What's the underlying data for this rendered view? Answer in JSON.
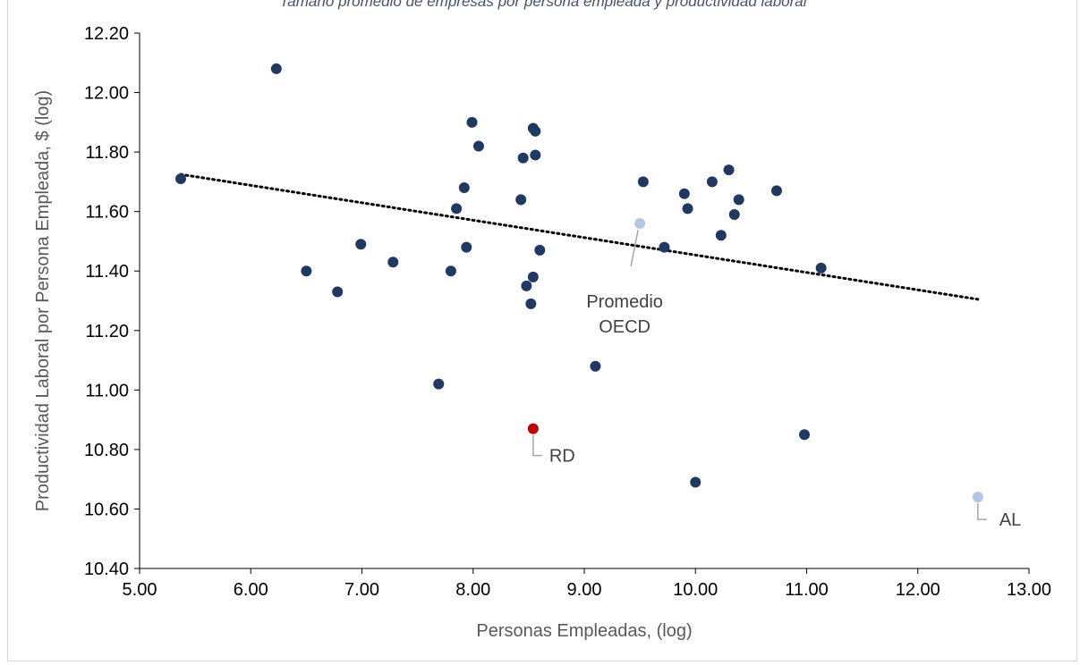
{
  "chart_data": {
    "type": "scatter",
    "title": "",
    "caption_fragment": "Tamaño promedio de empresas por persona empleada y productividad laboral",
    "xlabel": "Personas Empleadas, (log)",
    "ylabel": "Productividad Laboral por Persona Empleada, $ (log)",
    "xlim": [
      5.0,
      13.0
    ],
    "ylim": [
      10.4,
      12.2
    ],
    "x_ticks": [
      "5.00",
      "6.00",
      "7.00",
      "8.00",
      "9.00",
      "10.00",
      "11.00",
      "12.00",
      "13.00"
    ],
    "y_ticks": [
      "10.40",
      "10.60",
      "10.80",
      "11.00",
      "11.20",
      "11.40",
      "11.60",
      "11.80",
      "12.00",
      "12.20"
    ],
    "grid": false,
    "legend": "none",
    "colors": {
      "countries": "#1f3864",
      "rd": "#c00000",
      "oecd": "#b4c6e7",
      "al": "#b4c6e7",
      "trendline": "#000000",
      "leader": "#a6a6a6"
    },
    "series": [
      {
        "points": [
          {
            "x": 5.37,
            "y": 11.71
          },
          {
            "x": 6.23,
            "y": 12.08
          },
          {
            "x": 6.5,
            "y": 11.4
          },
          {
            "x": 6.78,
            "y": 11.33
          },
          {
            "x": 6.99,
            "y": 11.49
          },
          {
            "x": 7.28,
            "y": 11.43
          },
          {
            "x": 7.69,
            "y": 11.02
          },
          {
            "x": 7.8,
            "y": 11.4
          },
          {
            "x": 7.85,
            "y": 11.61
          },
          {
            "x": 7.92,
            "y": 11.68
          },
          {
            "x": 7.94,
            "y": 11.48
          },
          {
            "x": 7.99,
            "y": 11.9
          },
          {
            "x": 8.05,
            "y": 11.82
          },
          {
            "x": 8.43,
            "y": 11.64
          },
          {
            "x": 8.45,
            "y": 11.78
          },
          {
            "x": 8.48,
            "y": 11.35
          },
          {
            "x": 8.52,
            "y": 11.29
          },
          {
            "x": 8.54,
            "y": 11.38
          },
          {
            "x": 8.54,
            "y": 11.88
          },
          {
            "x": 8.56,
            "y": 11.87
          },
          {
            "x": 8.56,
            "y": 11.79
          },
          {
            "x": 8.6,
            "y": 11.47
          },
          {
            "x": 9.1,
            "y": 11.08
          },
          {
            "x": 9.53,
            "y": 11.7
          },
          {
            "x": 9.72,
            "y": 11.48
          },
          {
            "x": 9.9,
            "y": 11.66
          },
          {
            "x": 9.93,
            "y": 11.61
          },
          {
            "x": 10.0,
            "y": 10.69
          },
          {
            "x": 10.15,
            "y": 11.7
          },
          {
            "x": 10.23,
            "y": 11.52
          },
          {
            "x": 10.3,
            "y": 11.74
          },
          {
            "x": 10.35,
            "y": 11.59
          },
          {
            "x": 10.39,
            "y": 11.64
          },
          {
            "x": 10.73,
            "y": 11.67
          },
          {
            "x": 10.98,
            "y": 10.85
          },
          {
            "x": 11.13,
            "y": 11.41
          }
        ]
      },
      {
        "name": "RD",
        "points": [
          {
            "x": 8.54,
            "y": 10.87
          }
        ]
      },
      {
        "name": "Promedio OECD",
        "points": [
          {
            "x": 9.5,
            "y": 11.56
          }
        ]
      },
      {
        "name": "AL",
        "points": [
          {
            "x": 12.54,
            "y": 10.64
          }
        ]
      }
    ],
    "trendline": {
      "style": "dotted",
      "x": [
        5.37,
        12.54
      ],
      "y": [
        11.725,
        11.305
      ]
    },
    "annotations": [
      {
        "lines": [
          "RD"
        ]
      },
      {
        "lines": [
          "Promedio",
          "OECD"
        ]
      },
      {
        "lines": [
          "AL"
        ]
      }
    ]
  }
}
